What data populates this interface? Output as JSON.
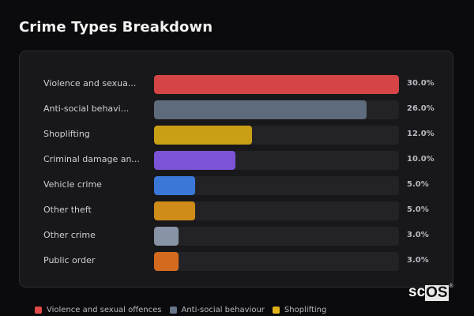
{
  "header": {
    "title": "Crime Types Breakdown"
  },
  "chart_data": {
    "type": "bar",
    "orientation": "horizontal",
    "title": "Crime Types Breakdown",
    "categories": [
      "Violence and sexual offences",
      "Anti-social behaviour",
      "Shoplifting",
      "Criminal damage and arson",
      "Vehicle crime",
      "Other theft",
      "Other crime",
      "Public order"
    ],
    "display_labels": [
      "Violence and sexua...",
      "Anti-social behavi...",
      "Shoplifting",
      "Criminal damage an...",
      "Vehicle crime",
      "Other theft",
      "Other crime",
      "Public order"
    ],
    "values": [
      30.0,
      26.0,
      12.0,
      10.0,
      5.0,
      5.0,
      3.0,
      3.0
    ],
    "value_labels": [
      "30.0%",
      "26.0%",
      "12.0%",
      "10.0%",
      "5.0%",
      "5.0%",
      "3.0%",
      "3.0%"
    ],
    "colors": [
      "#d64545",
      "#5e6b7d",
      "#c9a015",
      "#7b53d6",
      "#3a78d8",
      "#d08c18",
      "#8893a5",
      "#d46a1e"
    ],
    "max_value": 30.0,
    "xlabel": "",
    "ylabel": "",
    "grid": false,
    "legend_position": "bottom"
  },
  "legend": [
    {
      "label": "Violence and sexual offences",
      "color": "#e04a4a"
    },
    {
      "label": "Anti-social behaviour",
      "color": "#66758a"
    },
    {
      "label": "Shoplifting",
      "color": "#e2b21a"
    }
  ],
  "logo": {
    "prefix": "sc",
    "boxed": "OS",
    "reg": "®"
  }
}
